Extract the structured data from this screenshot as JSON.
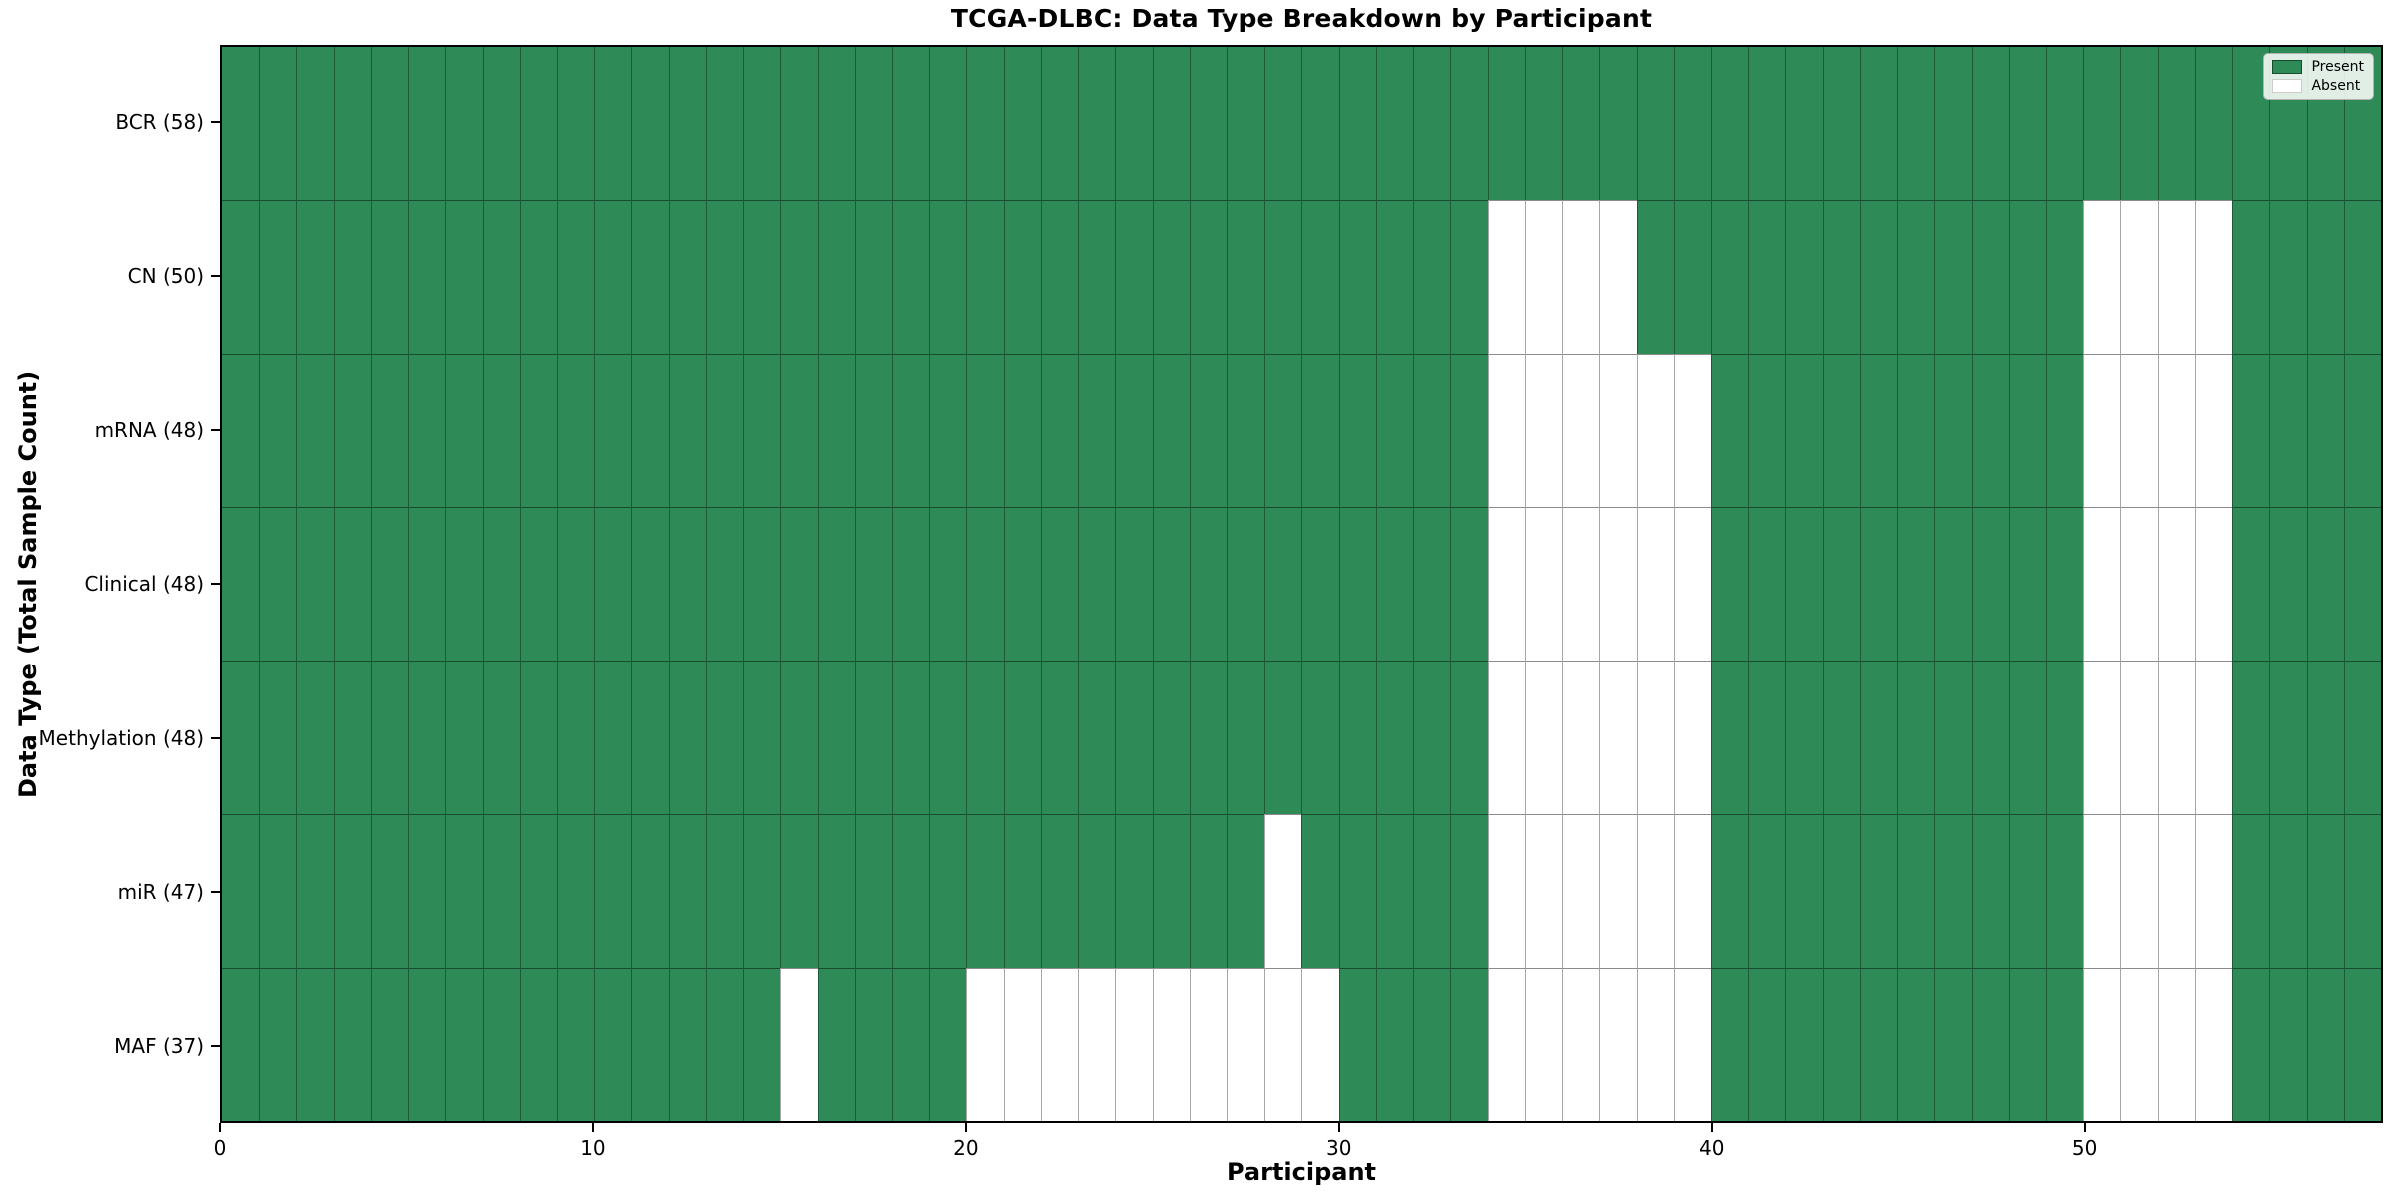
{
  "title": "TCGA-DLBC: Data Type Breakdown by Participant",
  "chart_data": {
    "type": "heatmap",
    "title": "TCGA-DLBC: Data Type Breakdown by Participant",
    "xlabel": "Participant",
    "ylabel": "Data Type (Total Sample Count)",
    "x_ticks": [
      0,
      10,
      20,
      30,
      40,
      50
    ],
    "x_range": [
      0,
      58
    ],
    "n_participants": 58,
    "grid": true,
    "legend_position": "upper right",
    "legend": [
      {
        "label": "Present",
        "color": "#2e8b57"
      },
      {
        "label": "Absent",
        "color": "#ffffff"
      }
    ],
    "rows": [
      {
        "label": "BCR (58)",
        "data_type": "BCR",
        "present_count": 58,
        "absent_participants": []
      },
      {
        "label": "CN (50)",
        "data_type": "CN",
        "present_count": 50,
        "absent_participants": [
          34,
          35,
          36,
          37,
          50,
          51,
          52,
          53
        ]
      },
      {
        "label": "mRNA (48)",
        "data_type": "mRNA",
        "present_count": 48,
        "absent_participants": [
          34,
          35,
          36,
          37,
          38,
          39,
          50,
          51,
          52,
          53
        ]
      },
      {
        "label": "Clinical (48)",
        "data_type": "Clinical",
        "present_count": 48,
        "absent_participants": [
          34,
          35,
          36,
          37,
          38,
          39,
          50,
          51,
          52,
          53
        ]
      },
      {
        "label": "Methylation (48)",
        "data_type": "Methylation",
        "present_count": 48,
        "absent_participants": [
          34,
          35,
          36,
          37,
          38,
          39,
          50,
          51,
          52,
          53
        ]
      },
      {
        "label": "miR (47)",
        "data_type": "miR",
        "present_count": 47,
        "absent_participants": [
          28,
          34,
          35,
          36,
          37,
          38,
          39,
          50,
          51,
          52,
          53
        ]
      },
      {
        "label": "MAF (37)",
        "data_type": "MAF",
        "present_count": 37,
        "absent_participants": [
          15,
          20,
          21,
          22,
          23,
          24,
          25,
          26,
          27,
          28,
          29,
          34,
          35,
          36,
          37,
          38,
          39,
          50,
          51,
          52,
          53
        ]
      }
    ],
    "colors": {
      "present": "#2e8b57",
      "absent": "#ffffff",
      "grid_line": "rgba(0,0,0,0.4)",
      "spine": "#000000"
    }
  }
}
